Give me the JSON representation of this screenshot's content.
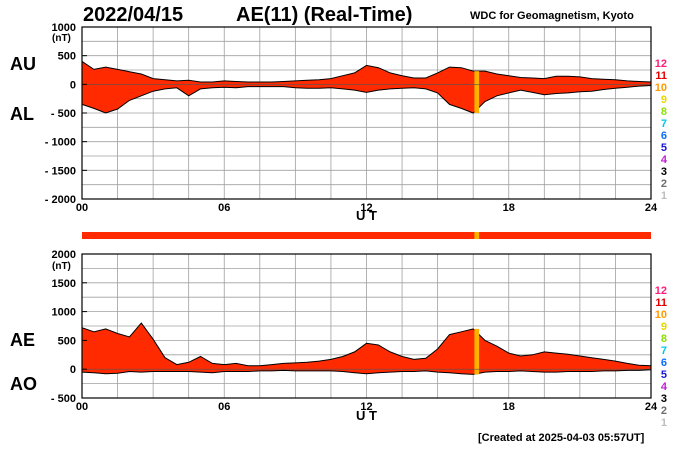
{
  "header": {
    "date": "2022/04/15",
    "title": "AE(11) (Real-Time)",
    "institution": "WDC for Geomagnetism, Kyoto"
  },
  "footer": {
    "created": "[Created at 2025-04-03 05:57UT]"
  },
  "legend": {
    "items": [
      {
        "label": "12",
        "color": "#ff1f7a"
      },
      {
        "label": "11",
        "color": "#e40000"
      },
      {
        "label": "10",
        "color": "#ff9a00"
      },
      {
        "label": "9",
        "color": "#e8d800"
      },
      {
        "label": "8",
        "color": "#8ee000"
      },
      {
        "label": "7",
        "color": "#00c8e8"
      },
      {
        "label": "6",
        "color": "#0a6cff"
      },
      {
        "label": "5",
        "color": "#1a14d6"
      },
      {
        "label": "4",
        "color": "#c41cd6"
      },
      {
        "label": "3",
        "color": "#000000"
      },
      {
        "label": "2",
        "color": "#6e6e6e"
      },
      {
        "label": "1",
        "color": "#bdbdbd"
      }
    ]
  },
  "colors": {
    "fill": "#ff2a00",
    "highlight": "#ffb000",
    "grid": "#a0a0a0"
  },
  "chart_data": [
    {
      "type": "area",
      "name": "au-al",
      "series_labels": [
        "AU",
        "AL"
      ],
      "ytick_labels": [
        "1000",
        "500",
        "0",
        "- 500",
        "- 1000",
        "- 1500",
        "- 2000"
      ],
      "yunit": "(nT)",
      "ylim": [
        -2000,
        1000
      ],
      "xlim": [
        0,
        24
      ],
      "xticks": [
        "00",
        "06",
        "12",
        "18",
        "24"
      ],
      "xlabel": "U T",
      "grid": true,
      "x": [
        0,
        0.5,
        1,
        1.5,
        2,
        2.5,
        3,
        3.5,
        4,
        4.5,
        5,
        5.5,
        6,
        6.5,
        7,
        7.5,
        8,
        8.5,
        9,
        9.5,
        10,
        10.5,
        11,
        11.5,
        12,
        12.5,
        13,
        13.5,
        14,
        14.5,
        15,
        15.5,
        16,
        16.5,
        17,
        17.5,
        18,
        18.5,
        19,
        19.5,
        20,
        20.5,
        21,
        21.5,
        22,
        22.5,
        23,
        23.5,
        24
      ],
      "upper": [
        400,
        260,
        300,
        260,
        220,
        180,
        100,
        80,
        60,
        70,
        40,
        40,
        60,
        50,
        40,
        40,
        40,
        50,
        60,
        70,
        80,
        100,
        150,
        200,
        330,
        290,
        200,
        150,
        110,
        110,
        200,
        300,
        290,
        230,
        230,
        180,
        150,
        120,
        110,
        100,
        140,
        140,
        130,
        100,
        90,
        80,
        60,
        50,
        40
      ],
      "lower": [
        -350,
        -420,
        -500,
        -430,
        -280,
        -200,
        -120,
        -80,
        -60,
        -200,
        -80,
        -60,
        -50,
        -60,
        -40,
        -40,
        -40,
        -40,
        -60,
        -70,
        -70,
        -60,
        -80,
        -100,
        -140,
        -100,
        -80,
        -70,
        -60,
        -80,
        -150,
        -350,
        -420,
        -500,
        -300,
        -200,
        -150,
        -100,
        -140,
        -180,
        -160,
        -150,
        -130,
        -120,
        -90,
        -70,
        -50,
        -30,
        -20
      ]
    },
    {
      "type": "area",
      "name": "ae-ao",
      "series_labels": [
        "AE",
        "AO"
      ],
      "ytick_labels": [
        "2000",
        "1500",
        "1000",
        "500",
        "0",
        "- 500"
      ],
      "yunit": "(nT)",
      "ylim": [
        -500,
        2000
      ],
      "xlim": [
        0,
        24
      ],
      "xticks": [
        "00",
        "06",
        "12",
        "18",
        "24"
      ],
      "xlabel": "U T",
      "grid": true,
      "x": [
        0,
        0.5,
        1,
        1.5,
        2,
        2.5,
        3,
        3.5,
        4,
        4.5,
        5,
        5.5,
        6,
        6.5,
        7,
        7.5,
        8,
        8.5,
        9,
        9.5,
        10,
        10.5,
        11,
        11.5,
        12,
        12.5,
        13,
        13.5,
        14,
        14.5,
        15,
        15.5,
        16,
        16.5,
        17,
        17.5,
        18,
        18.5,
        19,
        19.5,
        20,
        20.5,
        21,
        21.5,
        22,
        22.5,
        23,
        23.5,
        24
      ],
      "upper": [
        720,
        650,
        700,
        620,
        560,
        800,
        520,
        200,
        80,
        120,
        220,
        100,
        80,
        100,
        60,
        60,
        80,
        100,
        110,
        120,
        140,
        170,
        220,
        300,
        450,
        420,
        300,
        220,
        170,
        190,
        350,
        600,
        650,
        700,
        500,
        400,
        280,
        230,
        250,
        300,
        280,
        260,
        230,
        200,
        170,
        140,
        100,
        70,
        60
      ],
      "lower": [
        -50,
        -60,
        -80,
        -70,
        -40,
        -50,
        -40,
        -40,
        -40,
        -40,
        -50,
        -60,
        -40,
        -40,
        -40,
        -30,
        -30,
        -20,
        -30,
        -30,
        -30,
        -30,
        -40,
        -60,
        -80,
        -60,
        -50,
        -40,
        -40,
        -30,
        -50,
        -60,
        -80,
        -90,
        -50,
        -40,
        -40,
        -30,
        -40,
        -50,
        -50,
        -40,
        -40,
        -40,
        -30,
        -30,
        -20,
        -20,
        -10
      ]
    }
  ],
  "bar": {
    "label": "11",
    "highlight_x": [
      16.55,
      16.75
    ]
  }
}
